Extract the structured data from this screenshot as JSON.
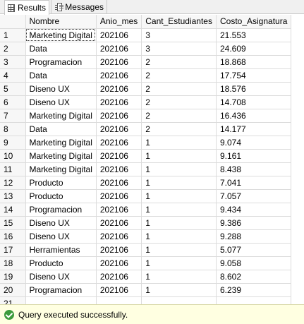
{
  "tabs": {
    "results": "Results",
    "messages": "Messages"
  },
  "columns": [
    "Nombre",
    "Anio_mes",
    "Cant_Estudiantes",
    "Costo_Asignatura"
  ],
  "rows": [
    {
      "n": "1",
      "nombre": "Marketing Digital",
      "anio_mes": "202106",
      "cant": "3",
      "costo": "21.553"
    },
    {
      "n": "2",
      "nombre": "Data",
      "anio_mes": "202106",
      "cant": "3",
      "costo": "24.609"
    },
    {
      "n": "3",
      "nombre": "Programacion",
      "anio_mes": "202106",
      "cant": "2",
      "costo": "18.868"
    },
    {
      "n": "4",
      "nombre": "Data",
      "anio_mes": "202106",
      "cant": "2",
      "costo": "17.754"
    },
    {
      "n": "5",
      "nombre": "Diseno UX",
      "anio_mes": "202106",
      "cant": "2",
      "costo": "18.576"
    },
    {
      "n": "6",
      "nombre": "Diseno UX",
      "anio_mes": "202106",
      "cant": "2",
      "costo": "14.708"
    },
    {
      "n": "7",
      "nombre": "Marketing Digital",
      "anio_mes": "202106",
      "cant": "2",
      "costo": "16.436"
    },
    {
      "n": "8",
      "nombre": "Data",
      "anio_mes": "202106",
      "cant": "2",
      "costo": "14.177"
    },
    {
      "n": "9",
      "nombre": "Marketing Digital",
      "anio_mes": "202106",
      "cant": "1",
      "costo": "9.074"
    },
    {
      "n": "10",
      "nombre": "Marketing Digital",
      "anio_mes": "202106",
      "cant": "1",
      "costo": "9.161"
    },
    {
      "n": "11",
      "nombre": "Marketing Digital",
      "anio_mes": "202106",
      "cant": "1",
      "costo": "8.438"
    },
    {
      "n": "12",
      "nombre": "Producto",
      "anio_mes": "202106",
      "cant": "1",
      "costo": "7.041"
    },
    {
      "n": "13",
      "nombre": "Producto",
      "anio_mes": "202106",
      "cant": "1",
      "costo": "7.057"
    },
    {
      "n": "14",
      "nombre": "Programacion",
      "anio_mes": "202106",
      "cant": "1",
      "costo": "9.434"
    },
    {
      "n": "15",
      "nombre": "Diseno UX",
      "anio_mes": "202106",
      "cant": "1",
      "costo": "9.386"
    },
    {
      "n": "16",
      "nombre": "Diseno UX",
      "anio_mes": "202106",
      "cant": "1",
      "costo": "9.288"
    },
    {
      "n": "17",
      "nombre": "Herramientas",
      "anio_mes": "202106",
      "cant": "1",
      "costo": "5.077"
    },
    {
      "n": "18",
      "nombre": "Producto",
      "anio_mes": "202106",
      "cant": "1",
      "costo": "9.058"
    },
    {
      "n": "19",
      "nombre": "Diseno UX",
      "anio_mes": "202106",
      "cant": "1",
      "costo": "8.602"
    },
    {
      "n": "20",
      "nombre": "Programacion",
      "anio_mes": "202106",
      "cant": "1",
      "costo": "6.239"
    },
    {
      "n": "21",
      "nombre": "",
      "anio_mes": "",
      "cant": "",
      "costo": ""
    }
  ],
  "status": {
    "text": "Query executed successfully.",
    "icon": "success-check-icon"
  }
}
